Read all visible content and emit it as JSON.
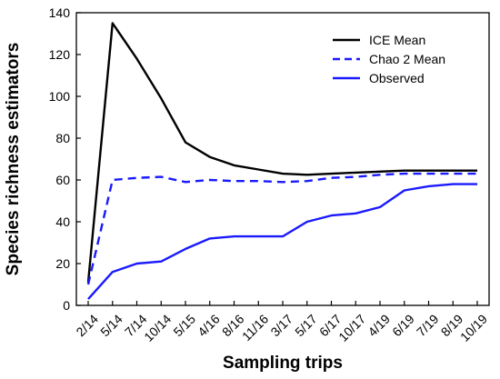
{
  "chart_data": {
    "type": "line",
    "title": "",
    "xlabel": "Sampling trips",
    "ylabel": "Species richness estimators",
    "categories": [
      "2/14",
      "5/14",
      "7/14",
      "10/14",
      "5/15",
      "4/16",
      "8/16",
      "11/16",
      "3/17",
      "5/17",
      "6/17",
      "10/17",
      "4/19",
      "6/19",
      "7/19",
      "8/19",
      "10/19"
    ],
    "ylim": [
      0,
      140
    ],
    "yticks": [
      0,
      20,
      40,
      60,
      80,
      100,
      120,
      140
    ],
    "grid": false,
    "legend_position": "top-right",
    "series": [
      {
        "name": "ICE Mean",
        "color": "#000000",
        "dash": "solid",
        "values": [
          11,
          135,
          118,
          99,
          78,
          71,
          67,
          65,
          63,
          62.5,
          63,
          63.5,
          64,
          64.5,
          64.5,
          64.5,
          64.5
        ]
      },
      {
        "name": "Chao 2 Mean",
        "color": "#1a1aff",
        "dash": "dashed",
        "values": [
          10,
          60,
          61,
          61.5,
          59,
          60,
          59.5,
          59.5,
          59,
          59.5,
          61,
          61.5,
          62.5,
          63,
          63,
          63,
          63
        ]
      },
      {
        "name": "Observed",
        "color": "#1a1aff",
        "dash": "solid",
        "values": [
          3,
          16,
          20,
          21,
          27,
          32,
          33,
          33,
          33,
          40,
          43,
          44,
          47,
          55,
          57,
          58,
          58
        ]
      }
    ]
  }
}
